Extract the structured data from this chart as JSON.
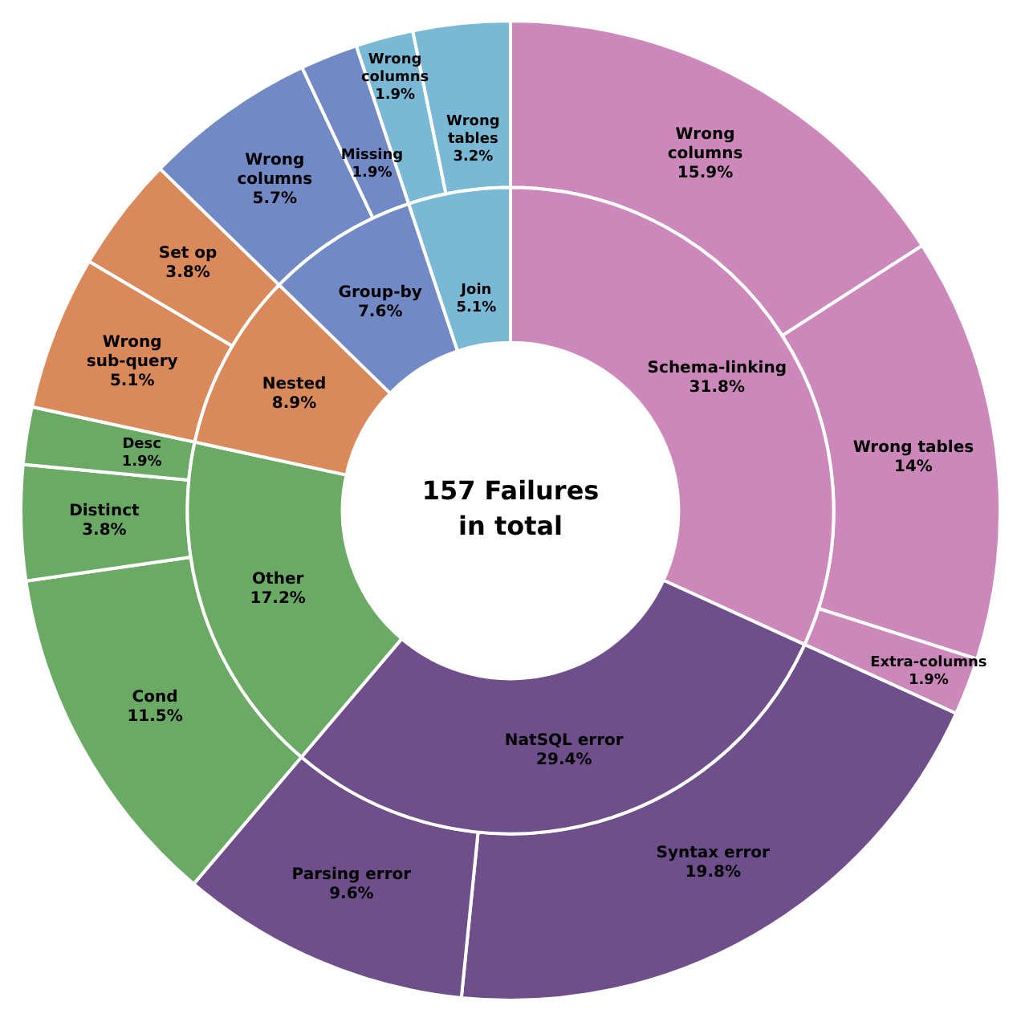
{
  "chart_data": [
    {
      "type": "donut",
      "legend": false,
      "categories": [
        "Wrong columns",
        "Wrong tables",
        "Extra-columns",
        "Syntax error",
        "Parsing error",
        "Cond",
        "Distinct",
        "Desc",
        "Wrong sub-query",
        "Set op",
        "Wrong columns",
        "Missing",
        "Wrong columns",
        "Wrong tables"
      ],
      "values": [
        15.9,
        14,
        1.9,
        19.8,
        9.6,
        11.5,
        3.8,
        1.9,
        5.1,
        3.8,
        5.7,
        1.9,
        1.9,
        3.2
      ],
      "value_labels": [
        "15.9%",
        "14%",
        "1.9%",
        "19.8%",
        "9.6%",
        "11.5%",
        "3.8%",
        "1.9%",
        "5.1%",
        "3.8%",
        "5.7%",
        "1.9%",
        "1.9%",
        "3.2%"
      ],
      "colors": [
        "#cc88bb",
        "#cc88bb",
        "#cc88bb",
        "#6e4f8c",
        "#6e4f8c",
        "#6aaa64",
        "#6aaa64",
        "#6aaa64",
        "#d9895a",
        "#d9895a",
        "#7189c4",
        "#7189c4",
        "#79b9d6",
        "#79b9d6"
      ]
    },
    {
      "type": "donut",
      "legend": false,
      "annotations": [
        "157 Failures in total"
      ],
      "categories": [
        "Schema-linking",
        "NatSQL error",
        "Other",
        "Nested",
        "Group-by",
        "Join"
      ],
      "values": [
        31.8,
        29.4,
        17.2,
        8.9,
        7.6,
        5.1
      ],
      "value_labels": [
        "31.8%",
        "29.4%",
        "17.2%",
        "8.9%",
        "7.6%",
        "5.1%"
      ],
      "colors": [
        "#cc88bb",
        "#6e4f8c",
        "#6aaa64",
        "#d9895a",
        "#7189c4",
        "#79b9d6"
      ]
    }
  ]
}
